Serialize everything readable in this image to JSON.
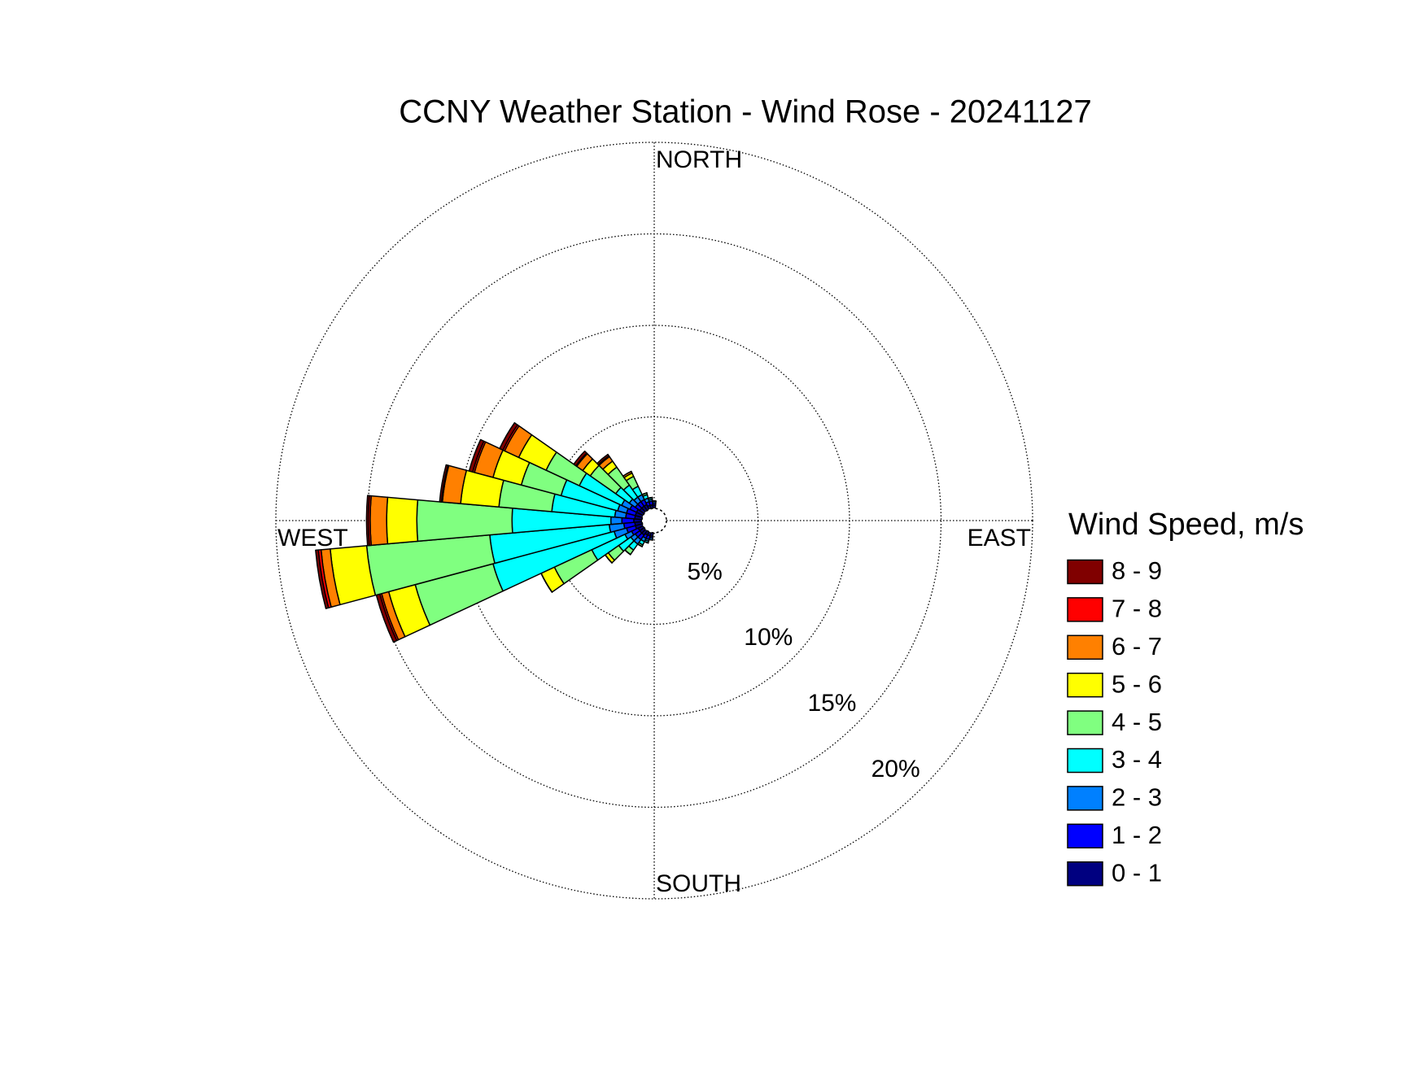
{
  "chart_data": {
    "type": "windrose",
    "title": "CCNY Weather Station - Wind Rose - 20241127",
    "direction_labels": [
      "NORTH",
      "EAST",
      "SOUTH",
      "WEST"
    ],
    "legend_title": "Wind Speed, m/s",
    "x": [
      190,
      200,
      210,
      220,
      230,
      240,
      250,
      260,
      270,
      280,
      290,
      300,
      310,
      320,
      330,
      340,
      350,
      0
    ],
    "bin_width": 10,
    "ylim": [
      0,
      20
    ],
    "yticks": [
      {
        "value": 5,
        "label": "5%"
      },
      {
        "value": 10,
        "label": "10%"
      },
      {
        "value": 15,
        "label": "15%"
      },
      {
        "value": 20,
        "label": "20%"
      }
    ],
    "grid": true,
    "series": [
      {
        "name": "0 - 1",
        "color": "#000080",
        "values": [
          0.2,
          0.2,
          0.2,
          0.3,
          0.3,
          0.3,
          0.4,
          0.4,
          0.45,
          0.4,
          0.4,
          0.4,
          0.3,
          0.3,
          0.3,
          0.2,
          0.2,
          0.2
        ]
      },
      {
        "name": "1 - 2",
        "color": "#0000ff",
        "values": [
          0.1,
          0.2,
          0.2,
          0.3,
          0.3,
          0.4,
          0.5,
          0.6,
          0.65,
          0.5,
          0.5,
          0.4,
          0.3,
          0.3,
          0.3,
          0.2,
          0.2,
          0.1
        ]
      },
      {
        "name": "2 - 3",
        "color": "#0080ff",
        "values": [
          0.1,
          0.1,
          0.2,
          0.3,
          0.3,
          0.4,
          0.7,
          0.8,
          0.6,
          0.6,
          0.5,
          0.5,
          0.4,
          0.3,
          0.3,
          0.2,
          0.1,
          0.1
        ]
      },
      {
        "name": "3 - 4",
        "color": "#00ffff",
        "values": [
          0,
          0.1,
          0.2,
          0.4,
          0.8,
          2.0,
          6.85,
          6.55,
          5.4,
          3.45,
          3.2,
          2.55,
          0.9,
          0.8,
          0.5,
          0.2,
          0.1,
          0
        ]
      },
      {
        "name": "4 - 5",
        "color": "#80ff80",
        "values": [
          0,
          0,
          0.1,
          0.3,
          0.7,
          2.25,
          4.4,
          6.75,
          5.2,
          2.9,
          2.25,
          2.0,
          1.7,
          1.2,
          0.6,
          0.1,
          0,
          0
        ]
      },
      {
        "name": "5 - 6",
        "color": "#ffff00",
        "values": [
          0,
          0,
          0,
          0,
          0.2,
          0.8,
          1.5,
          2.0,
          1.65,
          2.1,
          1.6,
          1.65,
          0.5,
          0.4,
          0.2,
          0,
          0,
          0
        ]
      },
      {
        "name": "6 - 7",
        "color": "#ff8000",
        "values": [
          0,
          0,
          0,
          0,
          0,
          0,
          0.4,
          0.5,
          0.9,
          1.0,
          1.05,
          0.85,
          0.4,
          0.3,
          0.1,
          0,
          0,
          0
        ]
      },
      {
        "name": "7 - 8",
        "color": "#ff0000",
        "values": [
          0,
          0,
          0,
          0,
          0,
          0,
          0.1,
          0.15,
          0.1,
          0.05,
          0.1,
          0.1,
          0.05,
          0.05,
          0,
          0,
          0,
          0
        ]
      },
      {
        "name": "8 - 9",
        "color": "#800000",
        "values": [
          0,
          0,
          0,
          0,
          0,
          0,
          0.2,
          0.15,
          0.1,
          0.1,
          0.2,
          0.2,
          0.15,
          0.1,
          0,
          0,
          0,
          0
        ]
      }
    ]
  }
}
